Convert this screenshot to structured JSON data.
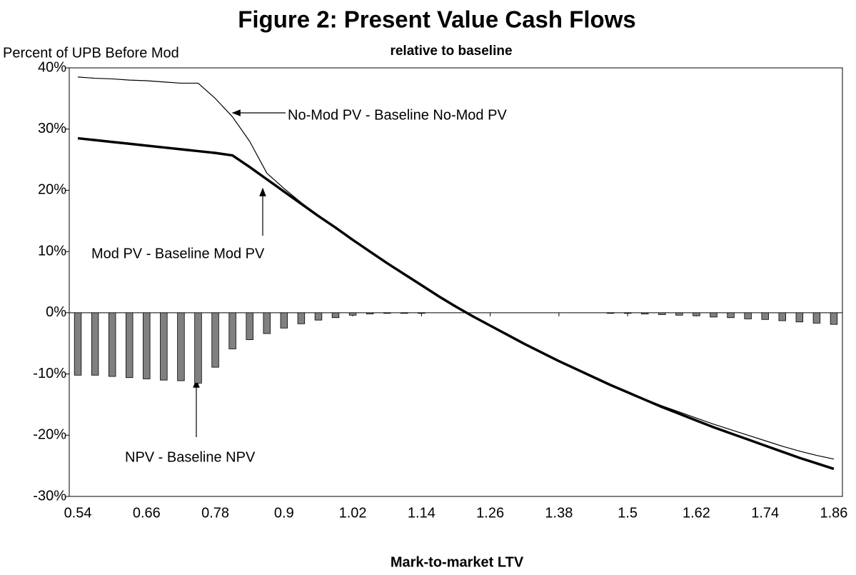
{
  "chart_data": {
    "type": "bar-line",
    "title": "Figure 2: Present Value Cash Flows",
    "subtitle": "relative to baseline",
    "ylabel": "Percent of UPB Before Mod",
    "xlabel": "Mark-to-market LTV",
    "x": [
      0.54,
      0.57,
      0.6,
      0.63,
      0.66,
      0.69,
      0.72,
      0.75,
      0.78,
      0.81,
      0.84,
      0.87,
      0.9,
      0.93,
      0.96,
      0.99,
      1.02,
      1.05,
      1.08,
      1.11,
      1.14,
      1.17,
      1.2,
      1.23,
      1.26,
      1.29,
      1.32,
      1.35,
      1.38,
      1.41,
      1.44,
      1.47,
      1.5,
      1.53,
      1.56,
      1.59,
      1.62,
      1.65,
      1.68,
      1.71,
      1.74,
      1.77,
      1.8,
      1.83,
      1.86
    ],
    "series": [
      {
        "name": "No-Mod PV - Baseline No-Mod PV",
        "type": "line",
        "color": "#000000",
        "values": [
          38.5,
          38.3,
          38.2,
          38.0,
          37.9,
          37.7,
          37.5,
          37.5,
          35.0,
          32.0,
          28.0,
          22.8,
          20.3,
          18.0,
          15.9,
          13.9,
          11.9,
          10.0,
          8.1,
          6.3,
          4.5,
          2.7,
          1.0,
          -0.6,
          -2.1,
          -3.6,
          -5.1,
          -6.5,
          -7.9,
          -9.2,
          -10.5,
          -11.8,
          -13.0,
          -14.1,
          -15.2,
          -16.2,
          -17.2,
          -18.2,
          -19.1,
          -20.0,
          -20.9,
          -21.8,
          -22.6,
          -23.3,
          -23.9
        ]
      },
      {
        "name": "Mod PV - Baseline Mod PV",
        "type": "line",
        "color": "#000000",
        "values": [
          28.5,
          28.2,
          27.9,
          27.6,
          27.3,
          27.0,
          26.7,
          26.4,
          26.1,
          25.7,
          23.8,
          21.8,
          19.8,
          17.8,
          15.8,
          13.9,
          11.9,
          10.0,
          8.1,
          6.3,
          4.5,
          2.7,
          1.0,
          -0.6,
          -2.1,
          -3.6,
          -5.1,
          -6.5,
          -7.9,
          -9.2,
          -10.5,
          -11.8,
          -13.0,
          -14.2,
          -15.4,
          -16.5,
          -17.6,
          -18.7,
          -19.7,
          -20.7,
          -21.7,
          -22.7,
          -23.7,
          -24.6,
          -25.5
        ]
      },
      {
        "name": "NPV - Baseline NPV",
        "type": "bar",
        "color": "#808080",
        "values": [
          -10.2,
          -10.2,
          -10.4,
          -10.6,
          -10.8,
          -11.0,
          -11.1,
          -11.5,
          -8.9,
          -5.9,
          -4.4,
          -3.4,
          -2.5,
          -1.8,
          -1.2,
          -0.8,
          -0.4,
          -0.2,
          -0.1,
          -0.1,
          -0.1,
          0,
          0,
          0,
          0,
          0,
          0,
          0,
          0,
          0,
          0,
          -0.1,
          -0.1,
          -0.2,
          -0.3,
          -0.4,
          -0.5,
          -0.7,
          -0.8,
          -1.0,
          -1.1,
          -1.3,
          -1.5,
          -1.7,
          -1.9
        ]
      }
    ],
    "xlim": [
      0.525,
      1.875
    ],
    "xticks": [
      0.54,
      0.66,
      0.78,
      0.9,
      1.02,
      1.14,
      1.26,
      1.38,
      1.5,
      1.62,
      1.74,
      1.86
    ],
    "ylim": [
      -30,
      40
    ],
    "yticks": [
      {
        "value": -30,
        "label": "-30%"
      },
      {
        "value": -20,
        "label": "-20%"
      },
      {
        "value": -10,
        "label": "-10%"
      },
      {
        "value": 0,
        "label": "0%"
      },
      {
        "value": 10,
        "label": "10%"
      },
      {
        "value": 20,
        "label": "20%"
      },
      {
        "value": 30,
        "label": "30%"
      },
      {
        "value": 40,
        "label": "40%"
      }
    ],
    "grid": false
  }
}
